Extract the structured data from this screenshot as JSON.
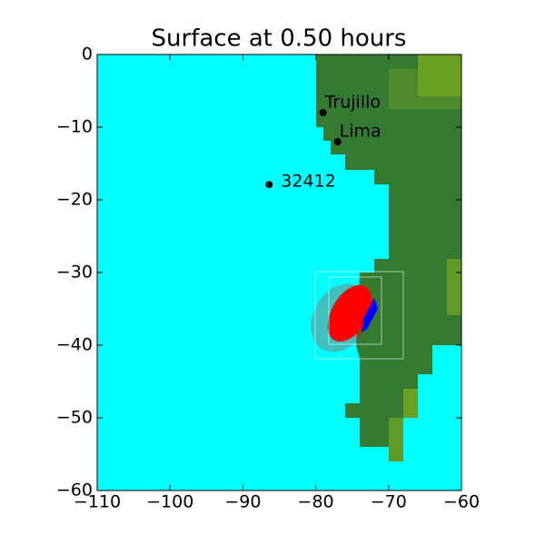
{
  "chart_data": {
    "type": "scatter",
    "title": "Surface at 0.50 hours",
    "x": [
      -79,
      -77,
      -86.4
    ],
    "values": [
      -8,
      -12,
      -17.9
    ],
    "labels": [
      "Trujillo",
      "Lima",
      "32412"
    ],
    "color": "#000000",
    "background": "#00ffff",
    "xlim": [
      -110,
      -60
    ],
    "ylim": [
      -60,
      0
    ],
    "xticks": [
      {
        "value": -110,
        "label": "−110"
      },
      {
        "value": -100,
        "label": "−100"
      },
      {
        "value": -90,
        "label": "−90"
      },
      {
        "value": -80,
        "label": "−80"
      },
      {
        "value": -70,
        "label": "−70"
      },
      {
        "value": -60,
        "label": "−60"
      }
    ],
    "yticks": [
      0,
      {
        "value": -10,
        "label": "−10"
      },
      {
        "value": -20,
        "label": "−20"
      },
      {
        "value": -30,
        "label": "−30"
      },
      {
        "value": -40,
        "label": "−40"
      },
      {
        "value": -50,
        "label": "−50"
      },
      {
        "value": -60,
        "label": "−60"
      }
    ]
  }
}
